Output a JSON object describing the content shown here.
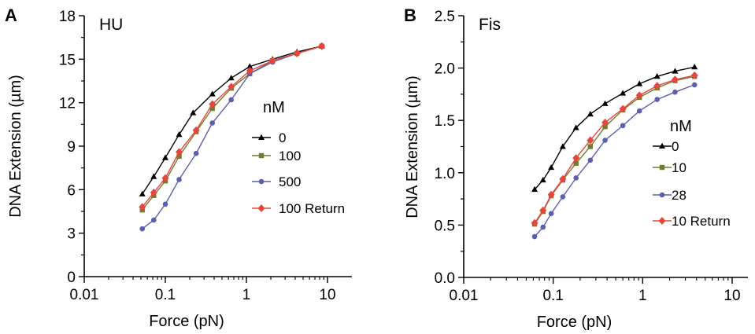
{
  "chart_data": [
    {
      "type": "line",
      "panel_label": "A",
      "title": "HU",
      "xlabel": "Force (pN)",
      "ylabel": "DNA Extension (µm)",
      "x_scale": "log",
      "xlim": [
        0.01,
        20
      ],
      "ylim": [
        0,
        18
      ],
      "x_ticks": [
        0.01,
        0.1,
        1,
        10
      ],
      "x_tick_labels": [
        "0.01",
        "0.1",
        "1",
        "10"
      ],
      "y_ticks": [
        0,
        3,
        6,
        9,
        12,
        15,
        18
      ],
      "y_tick_labels": [
        "0",
        "3",
        "6",
        "9",
        "12",
        "15",
        "18"
      ],
      "grid": false,
      "legend_title": "nM",
      "legend_position": "center-right",
      "series": [
        {
          "name": "0",
          "color": "#000000",
          "marker": "triangle",
          "x": [
            0.052,
            0.072,
            0.1,
            0.148,
            0.22,
            0.38,
            0.65,
            1.1,
            2.1,
            4.2,
            8.5
          ],
          "y": [
            5.7,
            6.9,
            8.2,
            9.8,
            11.3,
            12.6,
            13.7,
            14.5,
            15.0,
            15.5,
            15.9
          ]
        },
        {
          "name": "100",
          "color": "#6f7d2c",
          "marker": "square",
          "x": [
            0.052,
            0.072,
            0.1,
            0.148,
            0.24,
            0.38,
            0.65,
            1.1,
            2.1,
            4.2,
            8.5
          ],
          "y": [
            4.6,
            5.6,
            6.6,
            8.3,
            10.0,
            11.6,
            13.0,
            14.0,
            14.9,
            15.4,
            15.9
          ]
        },
        {
          "name": "500",
          "color": "#5a5fb0",
          "marker": "circle",
          "x": [
            0.052,
            0.072,
            0.1,
            0.148,
            0.24,
            0.38,
            0.65,
            1.1,
            2.1,
            4.2,
            8.5
          ],
          "y": [
            3.3,
            3.9,
            5.0,
            6.7,
            8.5,
            10.6,
            12.2,
            14.0,
            14.8,
            15.4,
            15.9
          ]
        },
        {
          "name": "100 Return",
          "color": "#e8453c",
          "marker": "diamond",
          "x": [
            0.052,
            0.072,
            0.1,
            0.148,
            0.24,
            0.38,
            0.65,
            1.1,
            2.1,
            4.2,
            8.5
          ],
          "y": [
            4.8,
            5.8,
            6.8,
            8.6,
            10.1,
            11.9,
            13.1,
            14.2,
            14.9,
            15.4,
            15.9
          ]
        }
      ]
    },
    {
      "type": "line",
      "panel_label": "B",
      "title": "Fis",
      "xlabel": "Force (pN)",
      "ylabel": "DNA Extension (µm)",
      "x_scale": "log",
      "xlim": [
        0.01,
        15
      ],
      "ylim": [
        0,
        2.5
      ],
      "x_ticks": [
        0.01,
        0.1,
        1,
        10
      ],
      "x_tick_labels": [
        "0.01",
        "0.1",
        "1",
        "10"
      ],
      "y_ticks": [
        0,
        0.5,
        1.0,
        1.5,
        2.0,
        2.5
      ],
      "y_tick_labels": [
        "0.0",
        "0.5",
        "1.0",
        "1.5",
        "2.0",
        "2.5"
      ],
      "grid": false,
      "legend_title": "nM",
      "legend_position": "center-right",
      "series": [
        {
          "name": "0",
          "color": "#000000",
          "marker": "triangle",
          "x": [
            0.062,
            0.077,
            0.095,
            0.128,
            0.18,
            0.26,
            0.38,
            0.6,
            0.92,
            1.45,
            2.3,
            3.8
          ],
          "y": [
            0.84,
            0.93,
            1.05,
            1.25,
            1.43,
            1.56,
            1.66,
            1.76,
            1.85,
            1.92,
            1.97,
            2.01
          ]
        },
        {
          "name": "10",
          "color": "#6f7d2c",
          "marker": "square",
          "x": [
            0.062,
            0.077,
            0.095,
            0.128,
            0.18,
            0.26,
            0.38,
            0.6,
            0.92,
            1.45,
            2.3,
            3.8
          ],
          "y": [
            0.51,
            0.63,
            0.78,
            0.93,
            1.09,
            1.25,
            1.44,
            1.6,
            1.72,
            1.81,
            1.88,
            1.92
          ]
        },
        {
          "name": "28",
          "color": "#5a5fb0",
          "marker": "circle",
          "x": [
            0.062,
            0.077,
            0.095,
            0.128,
            0.18,
            0.26,
            0.38,
            0.6,
            0.92,
            1.45,
            2.3,
            3.8
          ],
          "y": [
            0.39,
            0.48,
            0.61,
            0.77,
            0.95,
            1.12,
            1.31,
            1.45,
            1.59,
            1.7,
            1.77,
            1.84
          ]
        },
        {
          "name": "10 Return",
          "color": "#e8453c",
          "marker": "diamond",
          "x": [
            0.062,
            0.077,
            0.095,
            0.128,
            0.18,
            0.26,
            0.38,
            0.6,
            0.92,
            1.45,
            2.3,
            3.8
          ],
          "y": [
            0.52,
            0.64,
            0.79,
            0.94,
            1.14,
            1.31,
            1.48,
            1.61,
            1.74,
            1.83,
            1.89,
            1.93
          ]
        }
      ]
    }
  ]
}
